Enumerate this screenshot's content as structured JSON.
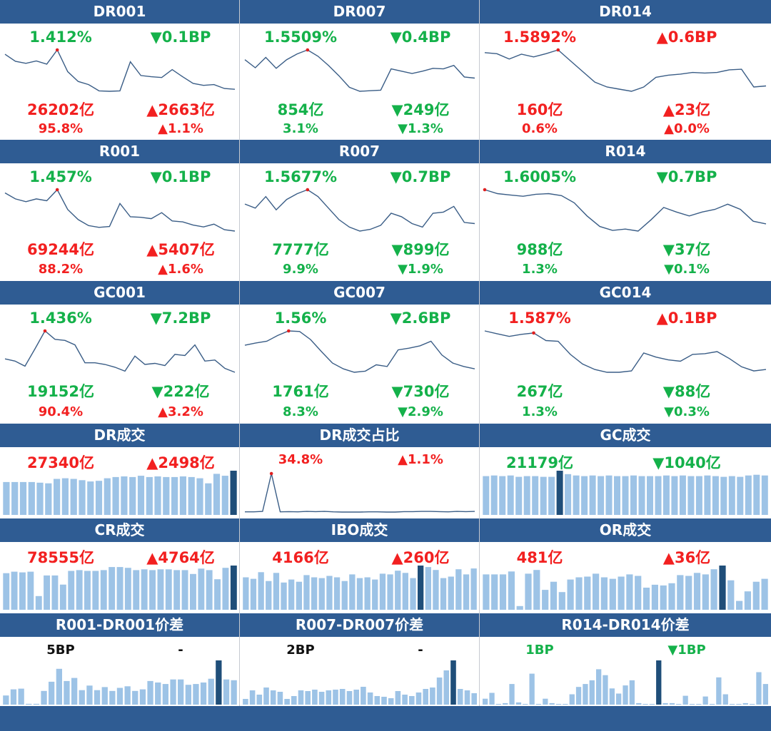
{
  "colors": {
    "header_bg": "#2f5c93",
    "up": "#f22020",
    "down": "#14b14a",
    "line": "#3a5d86",
    "bar": "#9dc3e6",
    "bar_highlight": "#1f4e79",
    "marker": "#e02020"
  },
  "line_panels": [
    {
      "id": "dr001",
      "title": "DR001",
      "rate": "1.412%",
      "rate_dir": "down",
      "chg": "0.1BP",
      "chg_dir": "down",
      "vol": "26202亿",
      "vol_dir": "up",
      "vol_chg": "2663亿",
      "vol_chg_dir": "up",
      "share": "95.8%",
      "share_dir": "up",
      "share_chg": "1.1%",
      "share_chg_dir": "up",
      "series": [
        1.449,
        1.431,
        1.426,
        1.432,
        1.424,
        1.46,
        1.405,
        1.38,
        1.372,
        1.356,
        1.355,
        1.356,
        1.43,
        1.395,
        1.392,
        1.39,
        1.41,
        1.392,
        1.375,
        1.37,
        1.372,
        1.362,
        1.36
      ],
      "peak_index": 5
    },
    {
      "id": "dr007",
      "title": "DR007",
      "rate": "1.5509%",
      "rate_dir": "down",
      "chg": "0.4BP",
      "chg_dir": "down",
      "vol": "854亿",
      "vol_dir": "down",
      "vol_chg": "249亿",
      "vol_chg_dir": "down",
      "share": "3.1%",
      "share_dir": "down",
      "share_chg": "1.3%",
      "share_chg_dir": "down",
      "series": [
        1.6,
        1.586,
        1.604,
        1.585,
        1.6,
        1.61,
        1.617,
        1.606,
        1.59,
        1.572,
        1.552,
        1.545,
        1.546,
        1.547,
        1.584,
        1.58,
        1.576,
        1.58,
        1.585,
        1.584,
        1.59,
        1.57,
        1.568
      ],
      "peak_index": 6
    },
    {
      "id": "dr014",
      "title": "DR014",
      "rate": "1.5892%",
      "rate_dir": "up",
      "chg": "0.6BP",
      "chg_dir": "up",
      "vol": "160亿",
      "vol_dir": "up",
      "vol_chg": "23亿",
      "vol_chg_dir": "up",
      "share": "0.6%",
      "share_dir": "up",
      "share_chg": "0.0%",
      "share_chg_dir": "up",
      "series": [
        1.62,
        1.618,
        1.608,
        1.617,
        1.612,
        1.618,
        1.625,
        1.605,
        1.585,
        1.565,
        1.556,
        1.552,
        1.548,
        1.556,
        1.574,
        1.578,
        1.58,
        1.583,
        1.582,
        1.583,
        1.588,
        1.589,
        1.556,
        1.558
      ],
      "peak_index": 6
    },
    {
      "id": "r001",
      "title": "R001",
      "rate": "1.457%",
      "rate_dir": "down",
      "chg": "0.1BP",
      "chg_dir": "down",
      "vol": "69244亿",
      "vol_dir": "up",
      "vol_chg": "5407亿",
      "vol_chg_dir": "up",
      "share": "88.2%",
      "share_dir": "up",
      "share_chg": "1.6%",
      "share_chg_dir": "up",
      "series": [
        1.463,
        1.45,
        1.444,
        1.45,
        1.446,
        1.47,
        1.427,
        1.405,
        1.392,
        1.388,
        1.39,
        1.44,
        1.411,
        1.41,
        1.407,
        1.42,
        1.402,
        1.4,
        1.393,
        1.389,
        1.395,
        1.383,
        1.38
      ],
      "peak_index": 5
    },
    {
      "id": "r007",
      "title": "R007",
      "rate": "1.5677%",
      "rate_dir": "down",
      "chg": "0.7BP",
      "chg_dir": "down",
      "vol": "7777亿",
      "vol_dir": "down",
      "vol_chg": "899亿",
      "vol_chg_dir": "down",
      "share": "9.9%",
      "share_dir": "down",
      "share_chg": "1.9%",
      "share_chg_dir": "down",
      "series": [
        1.612,
        1.605,
        1.625,
        1.602,
        1.62,
        1.63,
        1.637,
        1.625,
        1.605,
        1.585,
        1.572,
        1.565,
        1.568,
        1.575,
        1.596,
        1.59,
        1.578,
        1.572,
        1.596,
        1.598,
        1.608,
        1.58,
        1.578
      ],
      "peak_index": 6
    },
    {
      "id": "r014",
      "title": "R014",
      "rate": "1.6005%",
      "rate_dir": "down",
      "chg": "0.7BP",
      "chg_dir": "down",
      "vol": "988亿",
      "vol_dir": "down",
      "vol_chg": "37亿",
      "vol_chg_dir": "down",
      "share": "1.3%",
      "share_dir": "down",
      "share_chg": "0.1%",
      "share_chg_dir": "down",
      "series": [
        1.67,
        1.664,
        1.662,
        1.66,
        1.663,
        1.664,
        1.661,
        1.65,
        1.63,
        1.614,
        1.608,
        1.61,
        1.607,
        1.624,
        1.643,
        1.636,
        1.63,
        1.636,
        1.64,
        1.648,
        1.64,
        1.622,
        1.618
      ],
      "peak_index": 0
    },
    {
      "id": "gc001",
      "title": "GC001",
      "rate": "1.436%",
      "rate_dir": "down",
      "chg": "7.2BP",
      "chg_dir": "down",
      "vol": "19152亿",
      "vol_dir": "down",
      "vol_chg": "222亿",
      "vol_chg_dir": "down",
      "share": "90.4%",
      "share_dir": "up",
      "share_chg": "3.2%",
      "share_chg_dir": "up",
      "series": [
        1.4,
        1.396,
        1.387,
        1.418,
        1.45,
        1.435,
        1.433,
        1.425,
        1.393,
        1.393,
        1.39,
        1.385,
        1.378,
        1.405,
        1.39,
        1.392,
        1.388,
        1.408,
        1.406,
        1.425,
        1.396,
        1.398,
        1.383,
        1.376
      ],
      "peak_index": 4
    },
    {
      "id": "gc007",
      "title": "GC007",
      "rate": "1.56%",
      "rate_dir": "down",
      "chg": "2.6BP",
      "chg_dir": "down",
      "vol": "1761亿",
      "vol_dir": "down",
      "vol_chg": "730亿",
      "vol_chg_dir": "down",
      "share": "8.3%",
      "share_dir": "down",
      "share_chg": "2.9%",
      "share_chg_dir": "down",
      "series": [
        1.553,
        1.557,
        1.56,
        1.57,
        1.578,
        1.577,
        1.563,
        1.542,
        1.522,
        1.512,
        1.506,
        1.508,
        1.519,
        1.516,
        1.545,
        1.548,
        1.552,
        1.56,
        1.536,
        1.522,
        1.516,
        1.512
      ],
      "peak_index": 4
    },
    {
      "id": "gc014",
      "title": "GC014",
      "rate": "1.587%",
      "rate_dir": "up",
      "chg": "0.1BP",
      "chg_dir": "up",
      "vol": "267亿",
      "vol_dir": "down",
      "vol_chg": "88亿",
      "vol_chg_dir": "down",
      "share": "1.3%",
      "share_dir": "down",
      "share_chg": "0.3%",
      "share_chg_dir": "down",
      "series": [
        1.59,
        1.586,
        1.582,
        1.585,
        1.587,
        1.576,
        1.575,
        1.556,
        1.542,
        1.534,
        1.53,
        1.53,
        1.532,
        1.558,
        1.552,
        1.548,
        1.546,
        1.556,
        1.557,
        1.56,
        1.55,
        1.538,
        1.532,
        1.534
      ],
      "peak_index": 4
    }
  ],
  "dr_turnover": {
    "title": "DR成交",
    "value": "27340亿",
    "value_dir": "up",
    "chg": "2498亿",
    "chg_dir": "up",
    "values": [
      52,
      52,
      52,
      52,
      51,
      50,
      57,
      58,
      57,
      55,
      53,
      54,
      58,
      60,
      61,
      60,
      62,
      60,
      61,
      60,
      60,
      61,
      60,
      58,
      50,
      65,
      62,
      70
    ],
    "highlight_index": 27
  },
  "dr_share": {
    "title": "DR成交占比",
    "value": "34.8%",
    "value_dir": "up",
    "chg": "1.1%",
    "chg_dir": "up",
    "series": [
      2.0,
      2.0,
      3.0,
      90.0,
      2.0,
      2.5,
      2.0,
      3.0,
      2.5,
      3.0,
      2.0,
      1.5,
      1.5,
      1.5,
      2.0,
      2.0,
      1.5,
      1.5,
      2.5,
      2.5,
      3.0,
      3.0,
      2.5,
      2.0,
      3.0,
      2.5,
      3.0
    ],
    "peak_index": 3
  },
  "gc_turnover": {
    "title": "GC成交",
    "value": "21179亿",
    "value_dir": "down",
    "chg": "1040亿",
    "chg_dir": "down",
    "values": [
      57,
      58,
      57,
      58,
      56,
      57,
      57,
      56,
      56,
      65,
      60,
      58,
      57,
      58,
      57,
      58,
      57,
      57,
      58,
      57,
      57,
      57,
      58,
      57,
      58,
      57,
      57,
      58,
      57,
      56,
      57,
      56,
      58,
      59,
      58
    ],
    "highlight_index": 9
  },
  "cr_turnover": {
    "title": "CR成交",
    "value": "78555亿",
    "value_dir": "up",
    "chg": "4764亿",
    "chg_dir": "up",
    "values": [
      48,
      50,
      49,
      50,
      18,
      45,
      45,
      33,
      51,
      52,
      51,
      51,
      52,
      56,
      56,
      55,
      52,
      53,
      52,
      53,
      53,
      52,
      52,
      47,
      54,
      52,
      40,
      55,
      58
    ],
    "highlight_index": 28
  },
  "ibo_turnover": {
    "title": "IBO成交",
    "value": "4166亿",
    "value_dir": "up",
    "chg": "260亿",
    "chg_dir": "up",
    "values": [
      44,
      42,
      51,
      39,
      50,
      37,
      41,
      38,
      47,
      44,
      43,
      46,
      44,
      39,
      48,
      43,
      44,
      41,
      49,
      48,
      53,
      50,
      43,
      60,
      58,
      54,
      43,
      45,
      55,
      48,
      56
    ],
    "highlight_index": 23
  },
  "or_turnover": {
    "title": "OR成交",
    "value": "481亿",
    "value_dir": "up",
    "chg": "36亿",
    "chg_dir": "up",
    "values": [
      48,
      48,
      48,
      52,
      5,
      49,
      54,
      27,
      38,
      24,
      41,
      44,
      45,
      49,
      44,
      42,
      45,
      48,
      46,
      30,
      34,
      33,
      36,
      47,
      46,
      50,
      48,
      55,
      60,
      40,
      12,
      25,
      38,
      42
    ],
    "highlight_index": 28
  },
  "spread_panels": [
    {
      "id": "sp1",
      "title": "R001-DR001价差",
      "value": "5BP",
      "value_dir": "neutral",
      "chg": "-",
      "chg_dir": "neutral",
      "values": [
        12,
        20,
        21,
        1,
        1,
        18,
        30,
        47,
        31,
        35,
        19,
        25,
        19,
        23,
        18,
        22,
        24,
        18,
        20,
        31,
        29,
        27,
        33,
        33,
        26,
        27,
        29,
        34,
        58,
        33,
        32
      ],
      "highlight_index": 28
    },
    {
      "id": "sp2",
      "title": "R007-DR007价差",
      "value": "2BP",
      "value_dir": "neutral",
      "chg": "-",
      "chg_dir": "neutral",
      "values": [
        8,
        20,
        14,
        24,
        20,
        18,
        8,
        12,
        20,
        19,
        21,
        18,
        20,
        21,
        22,
        19,
        21,
        25,
        17,
        12,
        11,
        9,
        19,
        14,
        12,
        17,
        22,
        24,
        38,
        48,
        62,
        22,
        20,
        16
      ],
      "highlight_index": 30
    },
    {
      "id": "sp3",
      "title": "R014-DR014价差",
      "value": "1BP",
      "value_dir": "down",
      "chg": "1BP",
      "chg_dir": "down",
      "values": [
        8,
        16,
        1,
        2,
        28,
        3,
        1,
        42,
        1,
        8,
        2,
        1,
        1,
        14,
        24,
        28,
        33,
        48,
        40,
        22,
        15,
        26,
        33,
        2,
        1,
        1,
        60,
        2,
        2,
        1,
        12,
        1,
        1,
        11,
        1,
        37,
        14,
        1,
        1,
        2,
        1,
        44,
        28
      ],
      "highlight_index": 26
    }
  ]
}
